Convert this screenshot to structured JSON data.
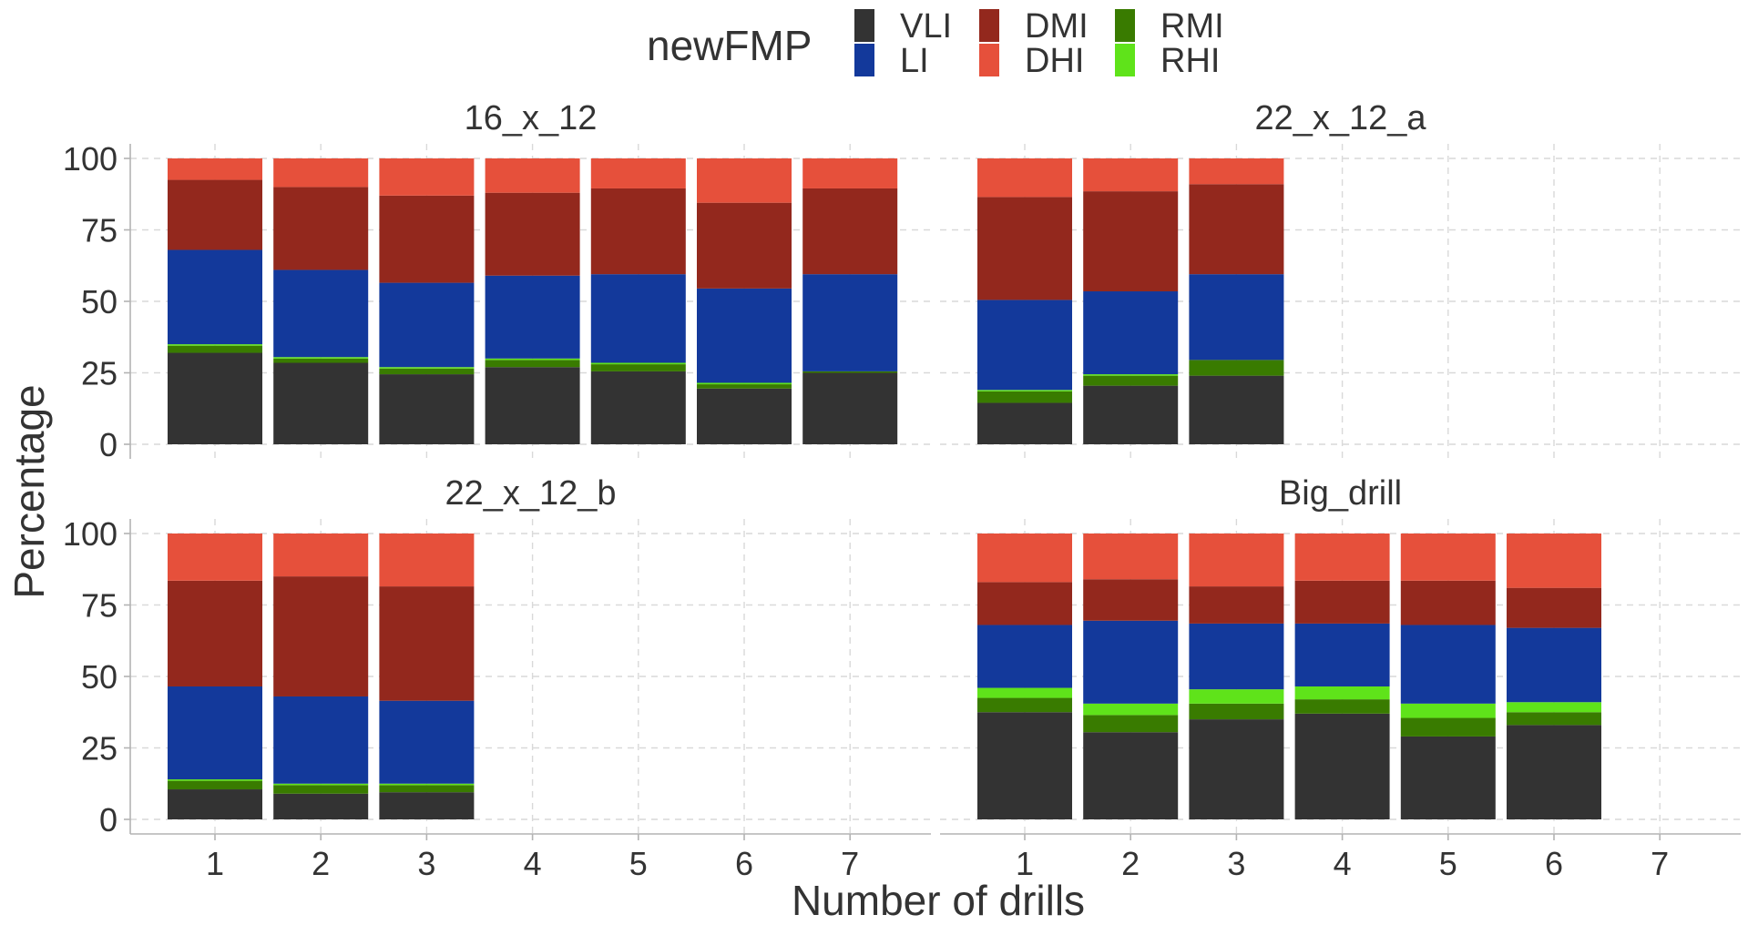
{
  "chart_data": {
    "type": "bar",
    "stacked": true,
    "xlabel": "Number of drills",
    "ylabel": "Percentage",
    "ylim": [
      0,
      100
    ],
    "yticks": [
      "0",
      "25",
      "50",
      "75",
      "100"
    ],
    "x_categories": [
      "1",
      "2",
      "3",
      "4",
      "5",
      "6",
      "7"
    ],
    "grid": true,
    "legend": {
      "title": "newFMP",
      "placement": "top",
      "entries": [
        {
          "name": "VLI",
          "color": "#333333"
        },
        {
          "name": "LI",
          "color": "#13399b"
        },
        {
          "name": "DMI",
          "color": "#93281d"
        },
        {
          "name": "DHI",
          "color": "#e6503b"
        },
        {
          "name": "RMI",
          "color": "#397b00"
        },
        {
          "name": "RHI",
          "color": "#5fe31a"
        }
      ]
    },
    "stack_order": [
      "VLI",
      "RMI",
      "RHI",
      "LI",
      "DMI",
      "DHI"
    ],
    "panels": [
      {
        "name": "16_x_12",
        "bars": [
          {
            "x": "1",
            "VLI": 32,
            "RMI": 2.5,
            "RHI": 0.5,
            "LI": 33,
            "DMI": 24.5,
            "DHI": 7.5
          },
          {
            "x": "2",
            "VLI": 28.5,
            "RMI": 1.5,
            "RHI": 0.5,
            "LI": 30.5,
            "DMI": 29,
            "DHI": 10
          },
          {
            "x": "3",
            "VLI": 24.5,
            "RMI": 2,
            "RHI": 0.5,
            "LI": 29.5,
            "DMI": 30.5,
            "DHI": 13
          },
          {
            "x": "4",
            "VLI": 27,
            "RMI": 2.5,
            "RHI": 0.5,
            "LI": 29,
            "DMI": 29,
            "DHI": 12
          },
          {
            "x": "5",
            "VLI": 25.5,
            "RMI": 2.5,
            "RHI": 0.5,
            "LI": 31,
            "DMI": 30,
            "DHI": 10.5
          },
          {
            "x": "6",
            "VLI": 19.5,
            "RMI": 1.5,
            "RHI": 0.5,
            "LI": 33,
            "DMI": 30,
            "DHI": 15.5
          },
          {
            "x": "7",
            "VLI": 25,
            "RMI": 0.5,
            "RHI": 0,
            "LI": 34,
            "DMI": 30,
            "DHI": 10.5
          }
        ]
      },
      {
        "name": "22_x_12_a",
        "bars": [
          {
            "x": "1",
            "VLI": 14.5,
            "RMI": 4,
            "RHI": 0.5,
            "LI": 31.5,
            "DMI": 36,
            "DHI": 13.5
          },
          {
            "x": "2",
            "VLI": 20.5,
            "RMI": 3.5,
            "RHI": 0.5,
            "LI": 29,
            "DMI": 35,
            "DHI": 11.5
          },
          {
            "x": "3",
            "VLI": 24,
            "RMI": 5.5,
            "RHI": 0,
            "LI": 30,
            "DMI": 31.5,
            "DHI": 9
          }
        ]
      },
      {
        "name": "22_x_12_b",
        "bars": [
          {
            "x": "1",
            "VLI": 10.5,
            "RMI": 3,
            "RHI": 0.5,
            "LI": 32.5,
            "DMI": 37,
            "DHI": 16.5
          },
          {
            "x": "2",
            "VLI": 9,
            "RMI": 3,
            "RHI": 0.5,
            "LI": 30.5,
            "DMI": 42,
            "DHI": 15
          },
          {
            "x": "3",
            "VLI": 9.5,
            "RMI": 2.5,
            "RHI": 0.5,
            "LI": 29,
            "DMI": 40,
            "DHI": 18.5
          }
        ]
      },
      {
        "name": "Big_drill",
        "bars": [
          {
            "x": "1",
            "VLI": 37.5,
            "RMI": 5,
            "RHI": 3.5,
            "LI": 22,
            "DMI": 15,
            "DHI": 17
          },
          {
            "x": "2",
            "VLI": 30.5,
            "RMI": 6,
            "RHI": 4,
            "LI": 29,
            "DMI": 14.5,
            "DHI": 16
          },
          {
            "x": "3",
            "VLI": 35,
            "RMI": 5.5,
            "RHI": 5,
            "LI": 23,
            "DMI": 13,
            "DHI": 18.5
          },
          {
            "x": "4",
            "VLI": 37,
            "RMI": 5,
            "RHI": 4.5,
            "LI": 22,
            "DMI": 15,
            "DHI": 16.5
          },
          {
            "x": "5",
            "VLI": 29,
            "RMI": 6.5,
            "RHI": 5,
            "LI": 27.5,
            "DMI": 15.5,
            "DHI": 16.5
          },
          {
            "x": "6",
            "VLI": 33,
            "RMI": 4.5,
            "RHI": 3.5,
            "LI": 26,
            "DMI": 14,
            "DHI": 19
          }
        ]
      }
    ]
  }
}
